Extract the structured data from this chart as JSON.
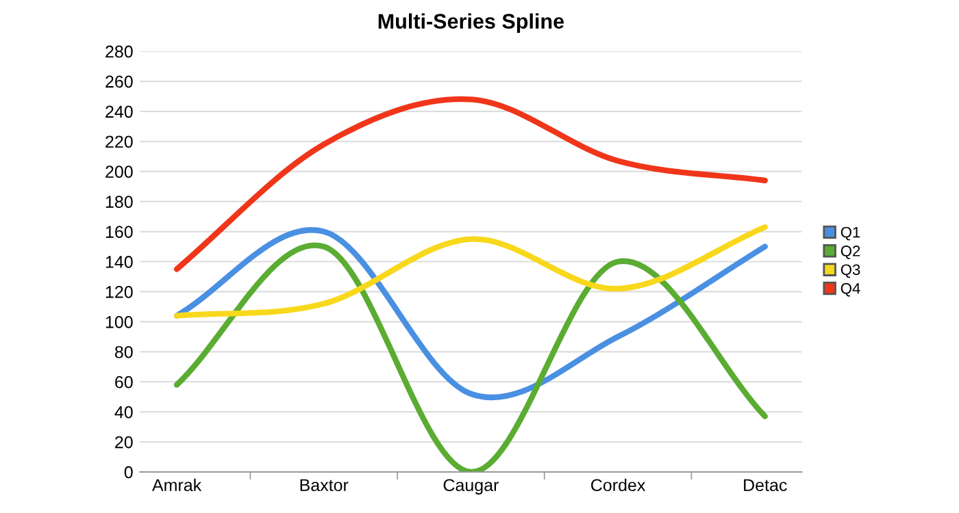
{
  "chart_data": {
    "type": "line",
    "title": "Multi-Series Spline",
    "categories": [
      "Amrak",
      "Baxtor",
      "Caugar",
      "Cordex",
      "Detac"
    ],
    "series": [
      {
        "name": "Q1",
        "color": "#4a90e2",
        "values": [
          104,
          160,
          52,
          90,
          150
        ]
      },
      {
        "name": "Q2",
        "color": "#5aac32",
        "values": [
          58,
          150,
          0,
          140,
          37
        ]
      },
      {
        "name": "Q3",
        "color": "#f8d81c",
        "values": [
          104,
          112,
          155,
          122,
          163
        ]
      },
      {
        "name": "Q4",
        "color": "#f0361a",
        "values": [
          135,
          218,
          248,
          207,
          194
        ]
      }
    ],
    "ylim": [
      0,
      280
    ],
    "yticks": [
      0,
      20,
      40,
      60,
      80,
      100,
      120,
      140,
      160,
      180,
      200,
      220,
      240,
      260,
      280
    ],
    "grid": "y",
    "legend": "right",
    "marker": "none",
    "line_style": "solid"
  }
}
